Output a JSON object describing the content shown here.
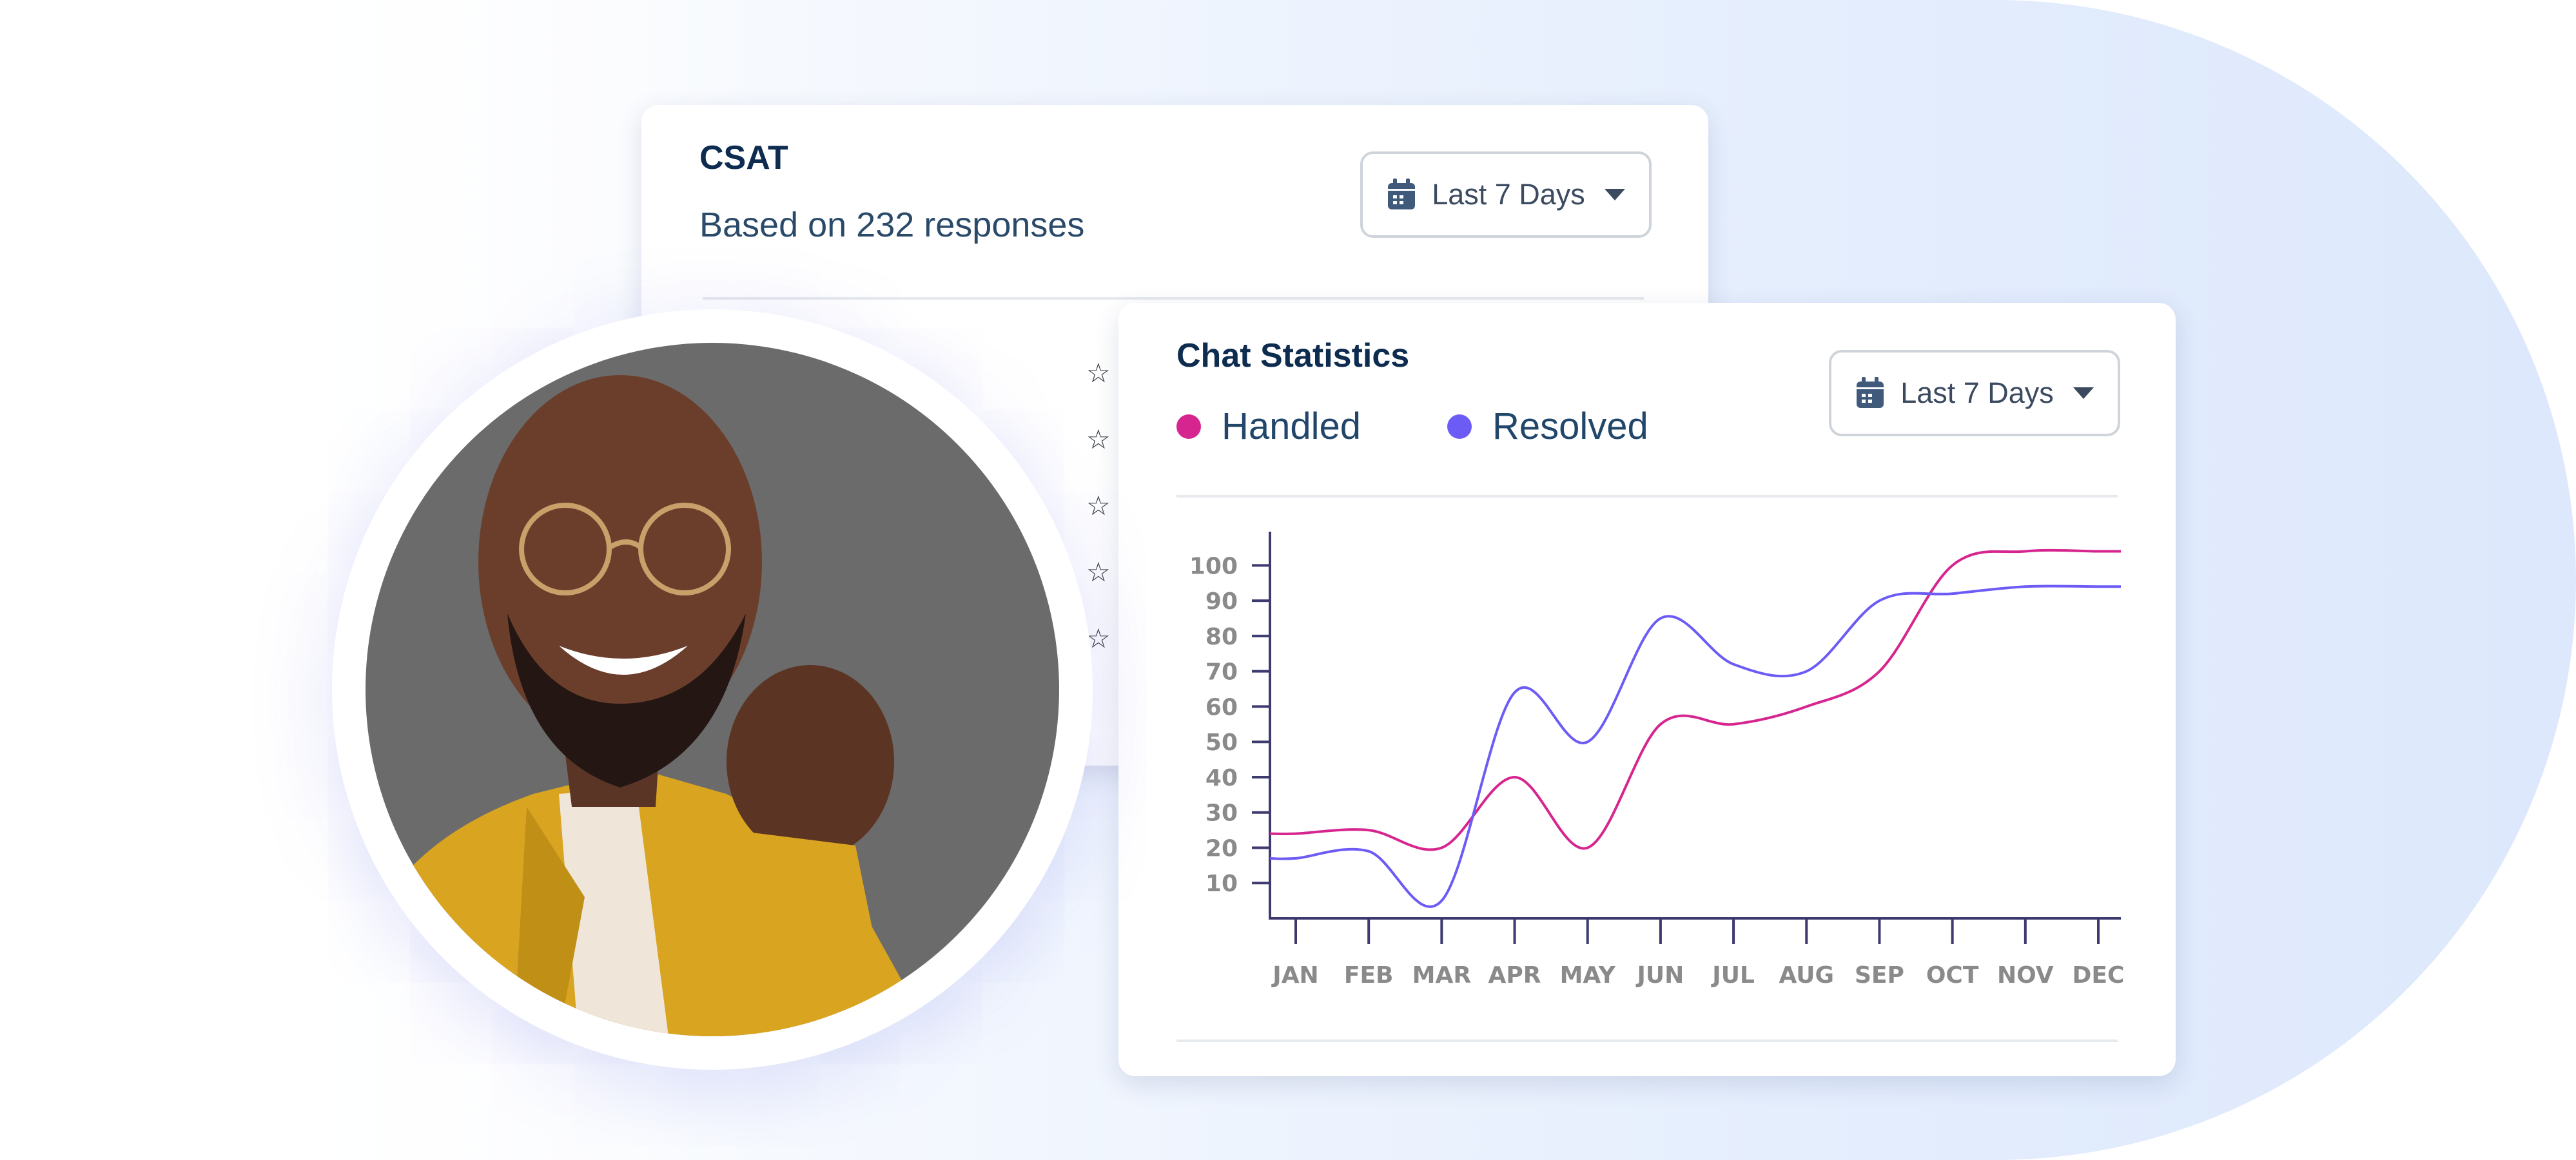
{
  "csat": {
    "title": "CSAT",
    "subtitle": "Based on 232 responses",
    "period": "Last 7 Days",
    "star_glyph": "☆"
  },
  "chat_stats": {
    "title": "Chat Statistics",
    "period": "Last 7 Days",
    "legend": [
      {
        "label": "Handled",
        "color": "#d6258f"
      },
      {
        "label": "Resolved",
        "color": "#6c5cf5"
      }
    ]
  },
  "icons": [
    "calendar-icon",
    "chevron-down-icon",
    "star-icon"
  ],
  "chart_data": {
    "type": "line",
    "categories": [
      "JAN",
      "FEB",
      "MAR",
      "APR",
      "MAY",
      "JUN",
      "JUL",
      "AUG",
      "SEP",
      "OCT",
      "NOV",
      "DEC"
    ],
    "y_ticks": [
      10,
      20,
      30,
      40,
      50,
      60,
      70,
      80,
      90,
      100
    ],
    "ylim": [
      0,
      105
    ],
    "series": [
      {
        "name": "Handled",
        "color": "#d6258f",
        "values": [
          24,
          25,
          20,
          40,
          20,
          55,
          55,
          60,
          70,
          100,
          104,
          104
        ]
      },
      {
        "name": "Resolved",
        "color": "#6c5cf5",
        "values": [
          17,
          19,
          5,
          64,
          50,
          85,
          72,
          70,
          90,
          92,
          94,
          94
        ]
      }
    ],
    "grid": false,
    "legend_position": "top-left"
  }
}
